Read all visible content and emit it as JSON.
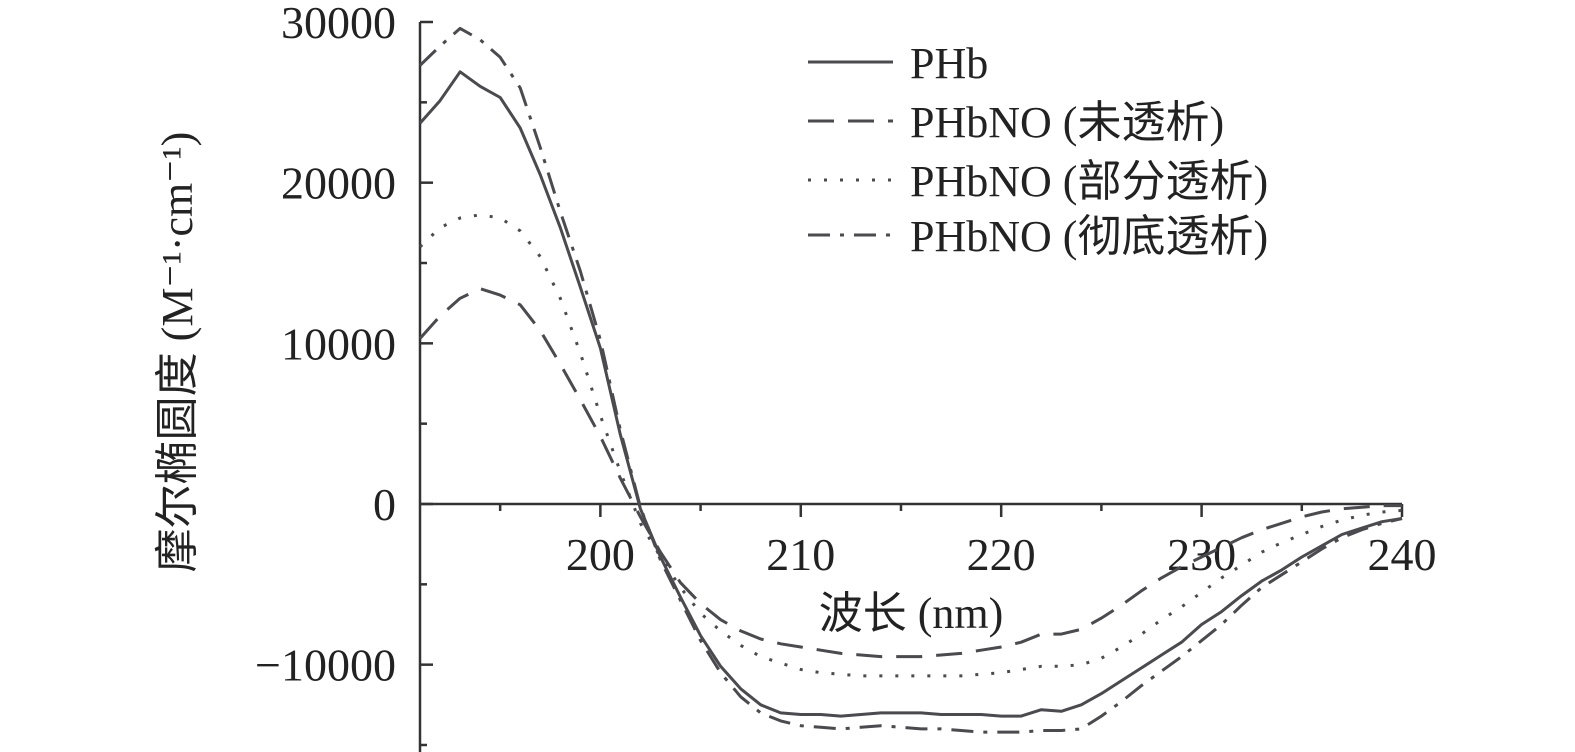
{
  "chart_data": {
    "type": "line",
    "xlabel": "波长 (nm)",
    "ylabel": "摩尔椭圆度 (M⁻¹·cm⁻¹)",
    "xlim": [
      191,
      240
    ],
    "ylim": [
      -15000,
      30000
    ],
    "x_ticks": [
      200,
      210,
      220,
      230,
      240
    ],
    "y_ticks": [
      -10000,
      0,
      10000,
      20000,
      30000
    ],
    "legend": "top-right",
    "grid": false,
    "series": [
      {
        "name": "PHb",
        "color": "#4a4a4f",
        "style": "solid",
        "x": [
          191,
          192,
          193,
          194,
          195,
          196,
          197,
          198,
          199,
          200,
          201,
          202,
          203,
          204,
          205,
          206,
          207,
          208,
          209,
          210,
          211,
          212,
          213,
          214,
          215,
          216,
          217,
          218,
          219,
          220,
          221,
          222,
          223,
          224,
          225,
          226,
          227,
          228,
          229,
          230,
          231,
          232,
          233,
          234,
          235,
          236,
          237,
          238,
          239,
          240
        ],
        "y": [
          23700,
          25100,
          26900,
          26000,
          25300,
          23400,
          20500,
          17200,
          13500,
          9700,
          4300,
          -300,
          -3300,
          -5800,
          -8200,
          -10100,
          -11500,
          -12500,
          -13000,
          -13100,
          -13100,
          -13200,
          -13100,
          -13000,
          -13000,
          -13000,
          -13100,
          -13100,
          -13100,
          -13200,
          -13200,
          -12800,
          -12900,
          -12500,
          -11800,
          -11000,
          -10200,
          -9400,
          -8600,
          -7500,
          -6700,
          -5700,
          -4800,
          -4100,
          -3300,
          -2600,
          -1900,
          -1500,
          -1100,
          -900
        ]
      },
      {
        "name": "PHbNO (未透析)",
        "color": "#4a4a4f",
        "style": "dashed",
        "x": [
          191,
          192,
          193,
          194,
          195,
          196,
          197,
          198,
          199,
          200,
          201,
          202,
          203,
          204,
          205,
          206,
          207,
          208,
          209,
          210,
          211,
          212,
          213,
          214,
          215,
          216,
          217,
          218,
          219,
          220,
          221,
          222,
          223,
          224,
          225,
          226,
          227,
          228,
          229,
          230,
          231,
          232,
          233,
          234,
          235,
          236,
          237,
          238,
          239,
          240
        ],
        "y": [
          10300,
          11700,
          12800,
          13400,
          13000,
          12400,
          10800,
          8700,
          6500,
          4200,
          1600,
          -800,
          -3000,
          -4900,
          -6200,
          -7200,
          -7900,
          -8400,
          -8700,
          -8900,
          -9100,
          -9300,
          -9400,
          -9500,
          -9500,
          -9500,
          -9400,
          -9300,
          -9100,
          -8900,
          -8600,
          -8100,
          -8100,
          -7800,
          -7100,
          -6300,
          -5400,
          -4600,
          -3900,
          -3300,
          -2700,
          -2100,
          -1600,
          -1200,
          -800,
          -500,
          -300,
          -200,
          -100,
          -100
        ]
      },
      {
        "name": "PHbNO (部分透析)",
        "color": "#4a4a4f",
        "style": "dotted",
        "x": [
          191,
          192,
          193,
          194,
          195,
          196,
          197,
          198,
          199,
          200,
          201,
          202,
          203,
          204,
          205,
          206,
          207,
          208,
          209,
          210,
          211,
          212,
          213,
          214,
          215,
          216,
          217,
          218,
          219,
          220,
          221,
          222,
          223,
          224,
          225,
          226,
          227,
          228,
          229,
          230,
          231,
          232,
          233,
          234,
          235,
          236,
          237,
          238,
          239,
          240
        ],
        "y": [
          16000,
          17200,
          17800,
          18000,
          17800,
          17000,
          15400,
          12800,
          9400,
          5500,
          2000,
          -1200,
          -3300,
          -5200,
          -6800,
          -7900,
          -8800,
          -9500,
          -9900,
          -10300,
          -10500,
          -10600,
          -10700,
          -10700,
          -10700,
          -10700,
          -10700,
          -10700,
          -10600,
          -10500,
          -10300,
          -10100,
          -10100,
          -10000,
          -9600,
          -8900,
          -8100,
          -7200,
          -6400,
          -5500,
          -4600,
          -3800,
          -3000,
          -2400,
          -1900,
          -1400,
          -1000,
          -700,
          -500,
          -400
        ]
      },
      {
        "name": "PHbNO (彻底透析)",
        "color": "#4a4a4f",
        "style": "dashdot",
        "x": [
          191,
          192,
          193,
          194,
          195,
          196,
          197,
          198,
          199,
          200,
          201,
          202,
          203,
          204,
          205,
          206,
          207,
          208,
          209,
          210,
          211,
          212,
          213,
          214,
          215,
          216,
          217,
          218,
          219,
          220,
          221,
          222,
          223,
          224,
          225,
          226,
          227,
          228,
          229,
          230,
          231,
          232,
          233,
          234,
          235,
          236,
          237,
          238,
          239,
          240
        ],
        "y": [
          27300,
          28500,
          29600,
          28900,
          27800,
          25900,
          22200,
          18200,
          14500,
          10200,
          4600,
          -200,
          -3500,
          -6000,
          -8500,
          -10500,
          -12000,
          -13000,
          -13500,
          -13800,
          -13900,
          -14000,
          -13900,
          -13800,
          -13900,
          -14000,
          -14000,
          -14100,
          -14200,
          -14200,
          -14200,
          -14100,
          -14100,
          -14000,
          -13200,
          -12300,
          -11300,
          -10400,
          -9500,
          -8500,
          -7500,
          -6300,
          -5200,
          -4400,
          -3600,
          -2800,
          -2100,
          -1600,
          -1200,
          -900
        ]
      }
    ]
  }
}
